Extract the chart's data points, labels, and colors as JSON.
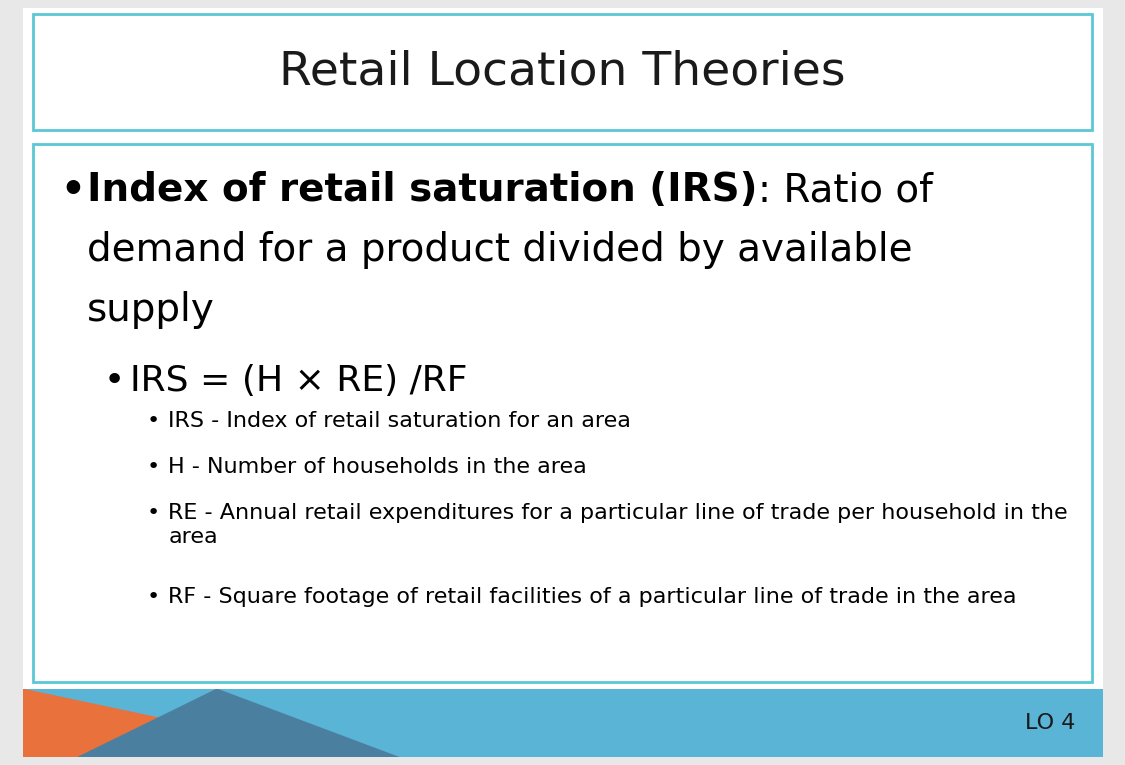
{
  "title": "Retail Location Theories",
  "title_fontsize": 34,
  "title_color": "#1a1a1a",
  "background_color": "#e8e8e8",
  "slide_bg": "#ffffff",
  "header_border_color": "#5bc8d5",
  "content_border_color": "#5bc8d5",
  "footer_bg_color": "#5ab4d6",
  "footer_orange_color": "#e8713c",
  "footer_dark_blue": "#4a7fa0",
  "footer_text": "LO 4",
  "footer_text_color": "#1a1a1a",
  "bullet1_bold": "Index of retail saturation (IRS)",
  "bullet1_normal": ": Ratio of demand for a product divided by available supply",
  "bullet2": "IRS = (H × RE) /RF",
  "sub_bullets": [
    "IRS - Index of retail saturation for an area",
    "H - Number of households in the area",
    "RE - Annual retail expenditures for a particular line of trade per household in the\narea",
    "RF - Square footage of retail facilities of a particular line of trade in the area"
  ],
  "bullet1_fontsize": 28,
  "bullet2_fontsize": 26,
  "sub_bullet_fontsize": 16
}
